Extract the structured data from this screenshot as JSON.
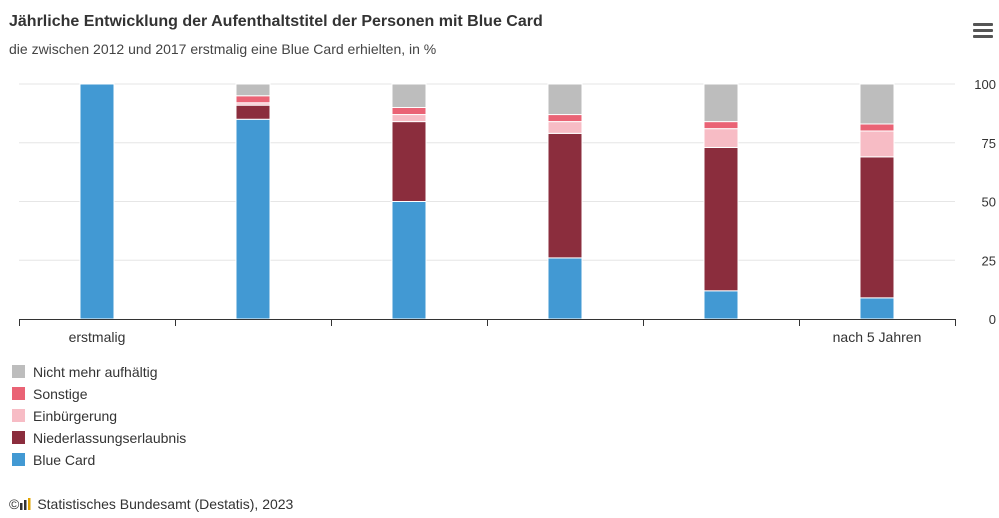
{
  "title": "Jährliche Entwicklung der Aufenthaltstitel der Personen mit Blue Card",
  "subtitle": "die zwischen 2012 und 2017 erstmalig eine Blue Card erhielten, in %",
  "credits": {
    "copyright": "©",
    "text": "Statistisches Bundesamt (Destatis), 2023"
  },
  "colors": {
    "blue_card": "#4299d3",
    "niederlassung": "#8b2d3d",
    "einbuergerung": "#f7bcc5",
    "sonstige": "#ea6375",
    "nicht_mehr": "#bdbdbd",
    "grid": "#e6e6e6",
    "axis": "#333333"
  },
  "chart_data": {
    "type": "bar",
    "stacked": true,
    "categories": [
      "erstmalig",
      "",
      "",
      "",
      "",
      "nach 5 Jahren"
    ],
    "ylim": [
      0,
      100
    ],
    "yticks": [
      0,
      25,
      50,
      75,
      100
    ],
    "y_axis_side": "right",
    "grid": true,
    "legend_position": "bottom-left",
    "series": [
      {
        "name": "Blue Card",
        "color": "#4299d3",
        "values": [
          100,
          85,
          50,
          26,
          12,
          9
        ]
      },
      {
        "name": "Niederlassungserlaubnis",
        "color": "#8b2d3d",
        "values": [
          0,
          6,
          34,
          53,
          61,
          60
        ]
      },
      {
        "name": "Einbürgerung",
        "color": "#f7bcc5",
        "values": [
          0,
          1,
          3,
          5,
          8,
          11
        ]
      },
      {
        "name": "Sonstige",
        "color": "#ea6375",
        "values": [
          0,
          3,
          3,
          3,
          3,
          3
        ]
      },
      {
        "name": "Nicht mehr aufhältig",
        "color": "#bdbdbd",
        "values": [
          0,
          5,
          10,
          13,
          16,
          17
        ]
      }
    ]
  },
  "legend": [
    {
      "label": "Nicht mehr aufhältig",
      "color": "#bdbdbd"
    },
    {
      "label": "Sonstige",
      "color": "#ea6375"
    },
    {
      "label": "Einbürgerung",
      "color": "#f7bcc5"
    },
    {
      "label": "Niederlassungserlaubnis",
      "color": "#8b2d3d"
    },
    {
      "label": "Blue Card",
      "color": "#4299d3"
    }
  ]
}
